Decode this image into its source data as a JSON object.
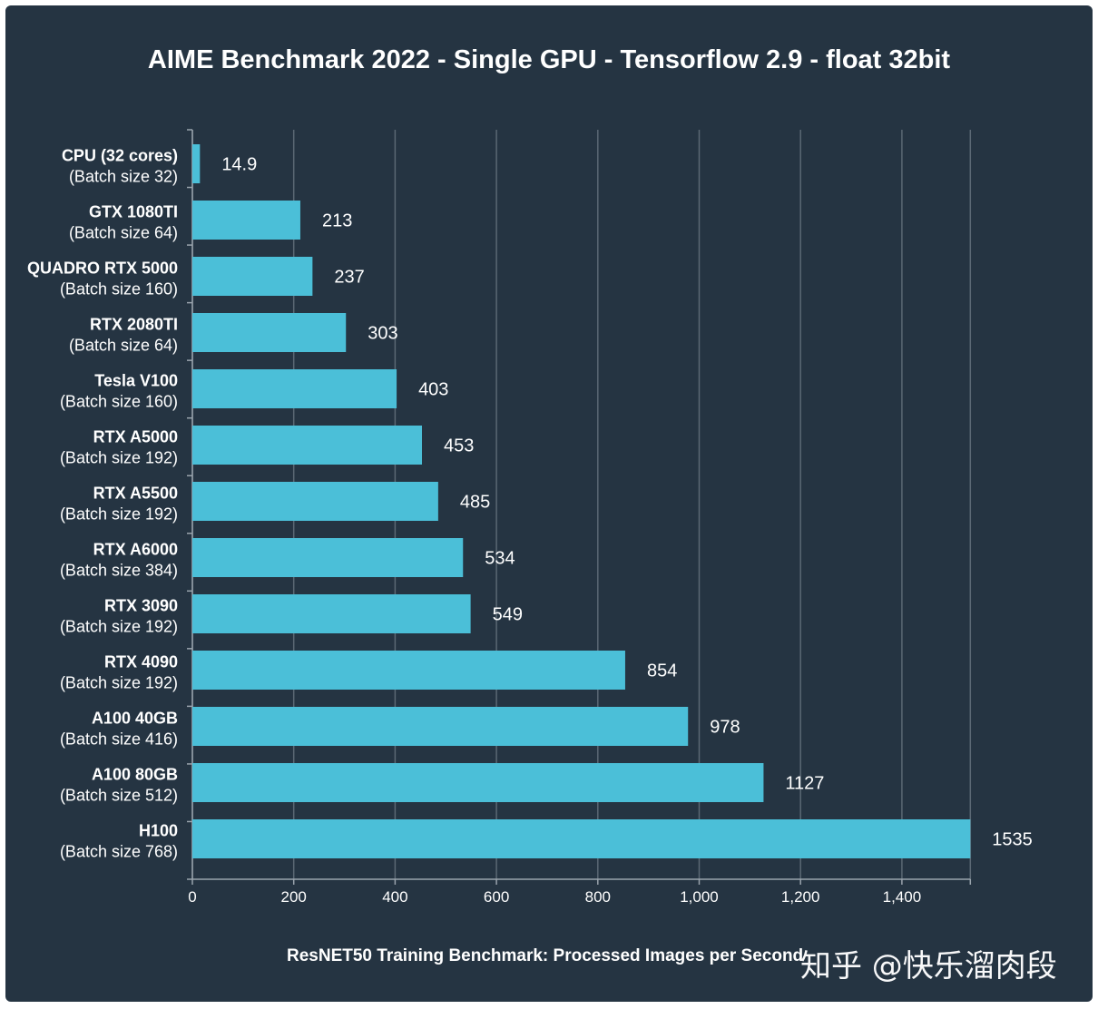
{
  "chart_data": {
    "type": "bar",
    "orientation": "horizontal",
    "title": "AIME Benchmark 2022 - Single GPU - Tensorflow 2.9 - float 32bit",
    "xlabel": "ResNET50 Training Benchmark: Processed Images per Second",
    "ylabel": "",
    "xlim": [
      0,
      1535
    ],
    "xticks": [
      0,
      200,
      400,
      600,
      800,
      1000,
      1200,
      1400
    ],
    "xtick_labels": [
      "0",
      "200",
      "400",
      "600",
      "800",
      "1,000",
      "1,200",
      "1,400"
    ],
    "grid": true,
    "bar_color": "#4bbfd8",
    "categories": [
      {
        "name": "CPU (32 cores)",
        "sub": "(Batch size 32)"
      },
      {
        "name": "GTX 1080TI",
        "sub": "(Batch size 64)"
      },
      {
        "name": "QUADRO RTX 5000",
        "sub": "(Batch size 160)"
      },
      {
        "name": "RTX 2080TI",
        "sub": "(Batch size 64)"
      },
      {
        "name": "Tesla V100",
        "sub": "(Batch size 160)"
      },
      {
        "name": "RTX A5000",
        "sub": "(Batch size 192)"
      },
      {
        "name": "RTX A5500",
        "sub": "(Batch size 192)"
      },
      {
        "name": "RTX A6000",
        "sub": "(Batch size 384)"
      },
      {
        "name": "RTX 3090",
        "sub": "(Batch size 192)"
      },
      {
        "name": "RTX 4090",
        "sub": "(Batch size 192)"
      },
      {
        "name": "A100 40GB",
        "sub": "(Batch size 416)"
      },
      {
        "name": "A100 80GB",
        "sub": "(Batch size 512)"
      },
      {
        "name": "H100",
        "sub": "(Batch size 768)"
      }
    ],
    "values": [
      14.9,
      213,
      237,
      303,
      403,
      453,
      485,
      534,
      549,
      854,
      978,
      1127,
      1535
    ],
    "value_labels": [
      "14.9",
      "213",
      "237",
      "303",
      "403",
      "453",
      "485",
      "534",
      "549",
      "854",
      "978",
      "1127",
      "1535"
    ]
  },
  "watermark": "知乎 @快乐溜肉段",
  "colors": {
    "background": "#253442",
    "bar": "#4bbfd8",
    "grid": "#5b6874",
    "text": "#ffffff"
  }
}
